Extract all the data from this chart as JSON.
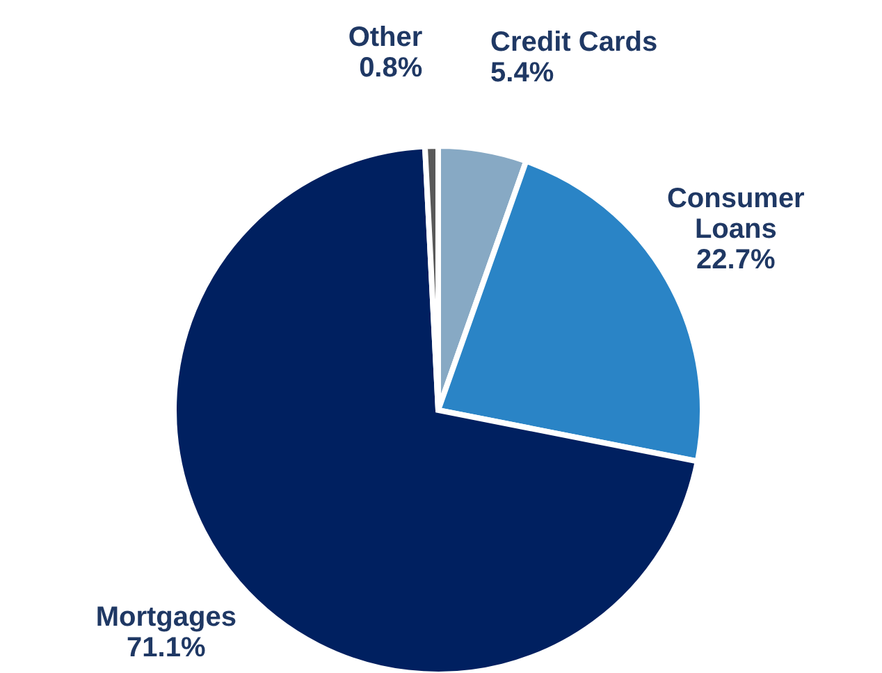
{
  "chart_data": {
    "type": "pie",
    "categories": [
      "Credit Cards",
      "Consumer Loans",
      "Mortgages",
      "Other"
    ],
    "values": [
      5.4,
      22.7,
      71.1,
      0.8
    ],
    "colors": [
      "#87a9c4",
      "#2a84c6",
      "#002060",
      "#595959"
    ],
    "value_labels": [
      "5.4%",
      "22.7%",
      "71.1%",
      "0.8%"
    ]
  }
}
